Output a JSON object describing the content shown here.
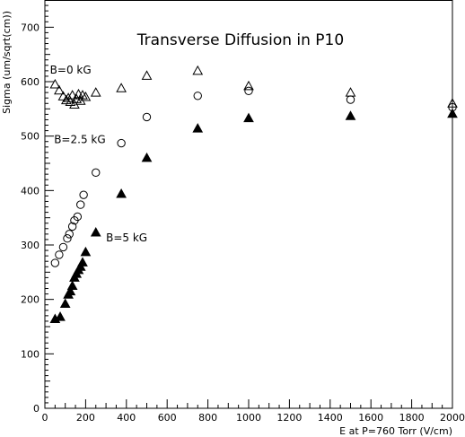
{
  "chart_data": {
    "type": "scatter",
    "title": "Transverse Diffusion in P10",
    "xlabel": "E at P=760 Torr (V/cm)",
    "ylabel": "Sigma (um/sqrt(cm))",
    "xlim": [
      0,
      2000
    ],
    "ylim": [
      0,
      750
    ],
    "x_ticks": [
      0,
      200,
      400,
      600,
      800,
      1000,
      1200,
      1400,
      1600,
      1800,
      2000
    ],
    "y_ticks": [
      0,
      100,
      200,
      300,
      400,
      500,
      600,
      700
    ],
    "grid": false,
    "annotations": [
      {
        "text": "B=0 kG",
        "x": 25,
        "y": 615
      },
      {
        "text": "B=2.5 kG",
        "x": 45,
        "y": 487
      },
      {
        "text": "B=5 kG",
        "x": 300,
        "y": 307
      }
    ],
    "series": [
      {
        "marker": "open-triangle",
        "points": [
          [
            50,
            595
          ],
          [
            70,
            584
          ],
          [
            90,
            573
          ],
          [
            105,
            566
          ],
          [
            115,
            570
          ],
          [
            125,
            563
          ],
          [
            135,
            575
          ],
          [
            145,
            558
          ],
          [
            155,
            568
          ],
          [
            165,
            577
          ],
          [
            175,
            565
          ],
          [
            185,
            575
          ],
          [
            200,
            572
          ],
          [
            250,
            580
          ],
          [
            375,
            588
          ],
          [
            500,
            611
          ],
          [
            750,
            620
          ],
          [
            1000,
            592
          ],
          [
            1500,
            580
          ],
          [
            2000,
            560
          ]
        ]
      },
      {
        "marker": "open-circle",
        "points": [
          [
            50,
            267
          ],
          [
            70,
            282
          ],
          [
            90,
            296
          ],
          [
            110,
            312
          ],
          [
            120,
            320
          ],
          [
            135,
            334
          ],
          [
            145,
            345
          ],
          [
            160,
            352
          ],
          [
            175,
            374
          ],
          [
            190,
            392
          ],
          [
            250,
            433
          ],
          [
            375,
            487
          ],
          [
            500,
            535
          ],
          [
            750,
            574
          ],
          [
            1000,
            583
          ],
          [
            1500,
            567
          ],
          [
            2000,
            553
          ]
        ]
      },
      {
        "marker": "filled-triangle",
        "points": [
          [
            50,
            164
          ],
          [
            75,
            168
          ],
          [
            100,
            192
          ],
          [
            115,
            209
          ],
          [
            125,
            215
          ],
          [
            135,
            225
          ],
          [
            145,
            240
          ],
          [
            155,
            247
          ],
          [
            165,
            254
          ],
          [
            175,
            260
          ],
          [
            185,
            268
          ],
          [
            200,
            287
          ],
          [
            250,
            323
          ],
          [
            375,
            394
          ],
          [
            500,
            460
          ],
          [
            750,
            514
          ],
          [
            1000,
            533
          ],
          [
            1500,
            537
          ],
          [
            2000,
            541
          ]
        ]
      }
    ]
  }
}
